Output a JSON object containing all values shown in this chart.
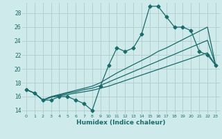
{
  "xlabel": "Humidex (Indice chaleur)",
  "bg_color": "#ceeaea",
  "grid_color": "#b0cccc",
  "line_color": "#1a6b6b",
  "xlim": [
    -0.5,
    23.5
  ],
  "ylim": [
    13.5,
    29.5
  ],
  "xticks": [
    0,
    1,
    2,
    3,
    4,
    5,
    6,
    7,
    8,
    9,
    10,
    11,
    12,
    13,
    14,
    15,
    16,
    17,
    18,
    19,
    20,
    21,
    22,
    23
  ],
  "yticks": [
    14,
    16,
    18,
    20,
    22,
    24,
    26,
    28
  ],
  "main_y": [
    17,
    16.5,
    15.5,
    15.5,
    16,
    16,
    15.5,
    15,
    14,
    17.5,
    20.5,
    23,
    22.5,
    23,
    25,
    29,
    29,
    27.5,
    26,
    26,
    25.5,
    22.5,
    22,
    20.5
  ],
  "line2_y": [
    17,
    16.5,
    15.5,
    16.0,
    16.3,
    16.6,
    16.9,
    17.2,
    17.5,
    18.0,
    18.7,
    19.4,
    20.0,
    20.6,
    21.2,
    21.8,
    22.5,
    23.0,
    23.6,
    24.2,
    24.8,
    25.4,
    26.0,
    20.5
  ],
  "line3_y": [
    17,
    16.5,
    15.5,
    15.9,
    16.2,
    16.5,
    16.7,
    17.0,
    17.2,
    17.6,
    18.1,
    18.6,
    19.1,
    19.6,
    20.1,
    20.6,
    21.1,
    21.6,
    22.1,
    22.6,
    23.1,
    23.6,
    24.1,
    20.5
  ],
  "line4_y": [
    17,
    16.5,
    15.5,
    15.9,
    16.1,
    16.3,
    16.5,
    16.7,
    16.9,
    17.2,
    17.5,
    17.9,
    18.3,
    18.7,
    19.1,
    19.5,
    19.9,
    20.3,
    20.7,
    21.1,
    21.5,
    21.9,
    22.3,
    20.5
  ],
  "markersize": 2.5,
  "linewidth": 0.9
}
